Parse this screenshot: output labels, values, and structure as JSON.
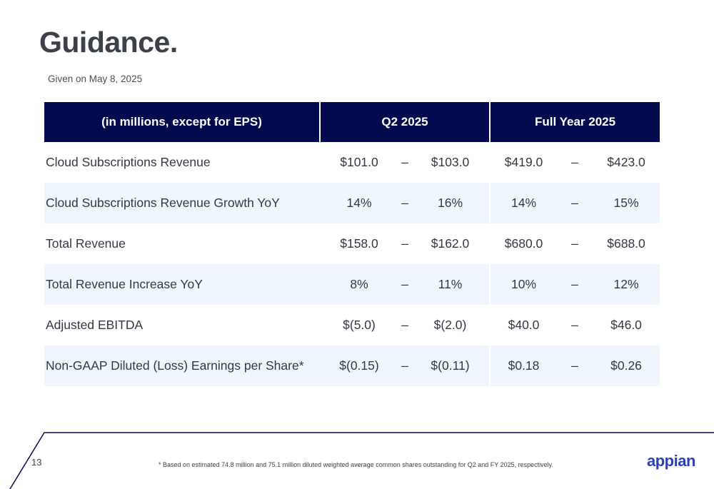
{
  "header": {
    "title": "Guidance.",
    "subtitle": "Given on May 8, 2025"
  },
  "table": {
    "columns": {
      "metric": "(in millions, except for EPS)",
      "q2": "Q2 2025",
      "fy": "Full Year 2025"
    },
    "separator": "–",
    "rows": [
      {
        "label": "Cloud Subscriptions Revenue",
        "q2_low": "$101.0",
        "q2_high": "$103.0",
        "fy_low": "$419.0",
        "fy_high": "$423.0"
      },
      {
        "label": "Cloud Subscriptions Revenue Growth YoY",
        "q2_low": "14%",
        "q2_high": "16%",
        "fy_low": "14%",
        "fy_high": "15%"
      },
      {
        "label": "Total Revenue",
        "q2_low": "$158.0",
        "q2_high": "$162.0",
        "fy_low": "$680.0",
        "fy_high": "$688.0"
      },
      {
        "label": "Total Revenue Increase YoY",
        "q2_low": "8%",
        "q2_high": "11%",
        "fy_low": "10%",
        "fy_high": "12%"
      },
      {
        "label": "Adjusted EBITDA",
        "q2_low": "$(5.0)",
        "q2_high": "$(2.0)",
        "fy_low": "$40.0",
        "fy_high": "$46.0"
      },
      {
        "label": "Non-GAAP Diluted (Loss) Earnings per Share*",
        "q2_low": "$(0.15)",
        "q2_high": "$(0.11)",
        "fy_low": "$0.18",
        "fy_high": "$0.26"
      }
    ]
  },
  "footer": {
    "page_number": "13",
    "footnote": "* Based on estimated 74.8 million and 75.1 million diluted weighted average common shares outstanding for Q2 and FY 2025, respectively.",
    "logo_text": "appian"
  },
  "colors": {
    "header_navy": "#040a4e",
    "stripe": "#f0f6fd",
    "logo_blue": "#2a3fb8"
  }
}
